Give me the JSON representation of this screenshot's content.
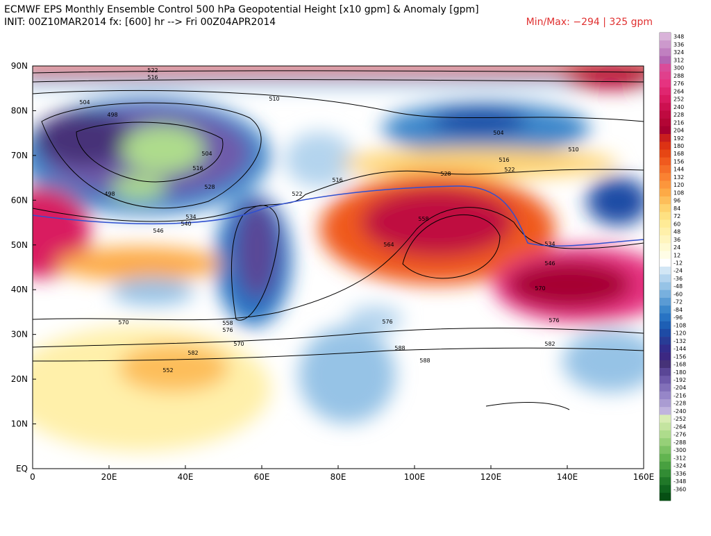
{
  "header": {
    "title": "ECMWF EPS Monthly Ensemble Control 500 hPa Geopotential Height [x10 gpm] & Anomaly [gpm]",
    "init": "INIT: 00Z10MAR2014 fx: [600] hr --> Fri 00Z04APR2014",
    "minmax": "Min/Max:  −294 |  325 gpm"
  },
  "map": {
    "lat_labels": [
      "90N",
      "80N",
      "70N",
      "60N",
      "50N",
      "40N",
      "30N",
      "20N",
      "10N",
      "EQ"
    ],
    "lon_labels": [
      "0",
      "20E",
      "40E",
      "60E",
      "80E",
      "100E",
      "120E",
      "140E",
      "160E"
    ],
    "contour_labels": [
      "522",
      "516",
      "504",
      "498",
      "510",
      "498",
      "504",
      "516",
      "528",
      "534",
      "540",
      "546",
      "522",
      "516",
      "558",
      "564",
      "528",
      "516",
      "522",
      "504",
      "510",
      "570",
      "576",
      "582",
      "588",
      "552",
      "558",
      "576",
      "570",
      "582",
      "570",
      "576",
      "588",
      "534",
      "546"
    ]
  },
  "colorbar": {
    "labels": [
      348,
      336,
      324,
      312,
      300,
      288,
      276,
      264,
      252,
      240,
      228,
      216,
      204,
      192,
      180,
      168,
      156,
      144,
      132,
      120,
      108,
      96,
      84,
      72,
      60,
      48,
      36,
      24,
      12,
      -12,
      -24,
      -36,
      -48,
      -60,
      -72,
      -84,
      -96,
      -108,
      -120,
      -132,
      -144,
      -156,
      -168,
      -180,
      -192,
      -204,
      -216,
      -228,
      -240,
      -252,
      -264,
      -276,
      -288,
      -300,
      -312,
      -324,
      -336,
      -348,
      -360
    ],
    "colors": [
      "#d9b3d9",
      "#cc99cc",
      "#c080c0",
      "#b366b3",
      "#d94c99",
      "#e0408c",
      "#e63380",
      "#e02670",
      "#d91a60",
      "#cc1050",
      "#bf0a40",
      "#b30535",
      "#a60030",
      "#c81e1e",
      "#dc3214",
      "#e64614",
      "#f05a1e",
      "#f56e28",
      "#fa8232",
      "#fc963c",
      "#fdaa46",
      "#fdbe5a",
      "#fed26e",
      "#fee182",
      "#ffeb96",
      "#fff0aa",
      "#fff5be",
      "#fffad2",
      "#fffde6",
      "#ffffff",
      "#d2e6f5",
      "#b4d4ee",
      "#96c3e6",
      "#78b0de",
      "#5a9bd4",
      "#3c87cb",
      "#2873c3",
      "#1e5fb4",
      "#1e4ba5",
      "#283c96",
      "#322d8c",
      "#3c2882",
      "#463278",
      "#5a4696",
      "#6e5aaa",
      "#8270b9",
      "#9686c8",
      "#aa9cd2",
      "#c0b4de",
      "#d8ecb4",
      "#c4e4a0",
      "#aedc8c",
      "#96d078",
      "#7cc264",
      "#62b450",
      "#48a040",
      "#328c34",
      "#207828",
      "#10641e",
      "#064f14"
    ]
  }
}
